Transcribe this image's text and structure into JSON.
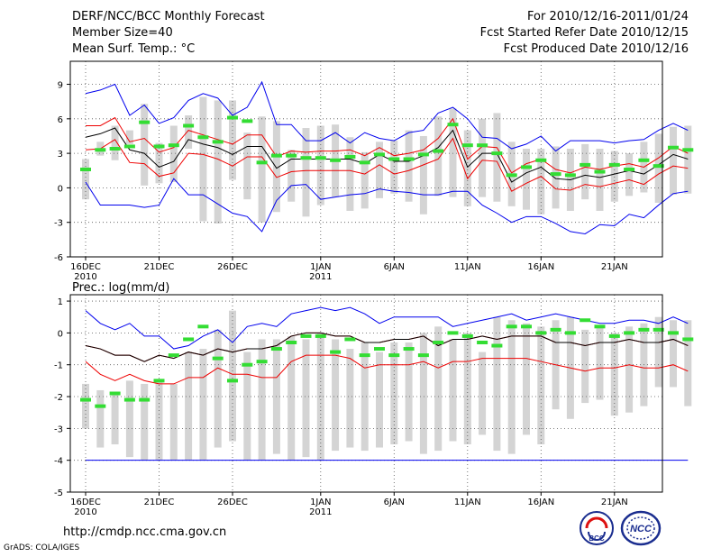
{
  "header": {
    "title": "DERF/NCC/BCC Monthly Forecast",
    "member_size": "Member Size=40",
    "variable": "Mean Surf. Temp.: °C",
    "valid_period": "For 2010/12/16-2011/01/24",
    "start_date": "Fcst Started Refer Date 2010/12/15",
    "produced_date": "Fcst Produced Date 2010/12/16"
  },
  "footer": {
    "url": "http://cmdp.ncc.cma.gov.cn",
    "credit": "GrADS: COLA/IGES",
    "logo_left_text": "BCC",
    "logo_right_text": "NCC"
  },
  "colors": {
    "envelope": "#0000ee",
    "quartile": "#ee0000",
    "mean": "#000000",
    "box": "#d4d4d4",
    "marker": "#33dd33",
    "grid": "#555555"
  },
  "x_axis": {
    "days": 40,
    "ticks": [
      {
        "day": 0,
        "label": "16DEC",
        "sub": "2010"
      },
      {
        "day": 5,
        "label": "21DEC",
        "sub": ""
      },
      {
        "day": 10,
        "label": "26DEC",
        "sub": ""
      },
      {
        "day": 16,
        "label": "1JAN",
        "sub": "2011"
      },
      {
        "day": 21,
        "label": "6JAN",
        "sub": ""
      },
      {
        "day": 26,
        "label": "11JAN",
        "sub": ""
      },
      {
        "day": 31,
        "label": "16JAN",
        "sub": ""
      },
      {
        "day": 36,
        "label": "21JAN",
        "sub": ""
      }
    ]
  },
  "chart_data": [
    {
      "type": "box",
      "title": "Mean Surf. Temp.: °C",
      "ylim": [
        -6,
        11
      ],
      "yticks": [
        -6,
        -3,
        0,
        3,
        6,
        9
      ],
      "blue_upper": [
        8.2,
        8.5,
        9.0,
        6.3,
        7.2,
        5.6,
        6.1,
        7.6,
        8.2,
        7.8,
        6.3,
        7.0,
        9.2,
        5.5,
        5.5,
        4.1,
        4.1,
        4.8,
        3.9,
        4.8,
        4.3,
        4.1,
        4.8,
        5.0,
        6.5,
        7.0,
        6.0,
        4.4,
        4.3,
        3.4,
        3.8,
        4.5,
        3.2,
        4.1,
        4.1,
        4.1,
        3.9,
        4.1,
        4.2,
        5.0,
        5.6,
        5.0
      ],
      "red_upper": [
        5.4,
        5.4,
        6.1,
        4.0,
        4.3,
        3.1,
        3.5,
        5.0,
        4.6,
        4.2,
        3.8,
        4.6,
        4.6,
        2.7,
        3.2,
        3.1,
        3.2,
        3.2,
        3.3,
        2.8,
        3.5,
        2.8,
        3.0,
        3.3,
        4.3,
        6.0,
        2.5,
        3.6,
        3.5,
        1.3,
        2.1,
        2.5,
        1.6,
        1.3,
        1.8,
        1.6,
        1.9,
        2.1,
        1.8,
        2.6,
        3.6,
        3.0
      ],
      "mean": [
        4.4,
        4.7,
        5.2,
        3.3,
        3.0,
        1.8,
        2.3,
        4.2,
        3.8,
        3.5,
        2.9,
        3.6,
        3.6,
        1.7,
        2.5,
        2.5,
        2.5,
        2.5,
        2.5,
        2.1,
        2.9,
        2.3,
        2.3,
        2.8,
        3.5,
        5.0,
        1.8,
        3.0,
        3.0,
        0.5,
        1.3,
        1.8,
        0.8,
        0.7,
        1.1,
        0.9,
        1.2,
        1.5,
        1.2,
        2.0,
        2.9,
        2.5
      ],
      "red_lower": [
        3.3,
        3.4,
        4.2,
        2.2,
        2.1,
        1.0,
        1.3,
        3.0,
        2.9,
        2.5,
        1.9,
        2.7,
        2.7,
        0.9,
        1.4,
        1.5,
        1.5,
        1.5,
        1.5,
        1.2,
        2.0,
        1.2,
        1.5,
        2.0,
        2.5,
        4.3,
        0.8,
        2.4,
        2.3,
        -0.3,
        0.4,
        1.0,
        -0.1,
        -0.2,
        0.3,
        0.1,
        0.4,
        0.7,
        0.3,
        1.2,
        1.9,
        1.7
      ],
      "blue_lower": [
        0.5,
        -1.5,
        -1.5,
        -1.5,
        -1.7,
        -1.5,
        0.8,
        -0.6,
        -0.6,
        -1.4,
        -2.2,
        -2.5,
        -3.8,
        -1.1,
        0.2,
        0.3,
        -1.0,
        -0.8,
        -0.6,
        -0.5,
        -0.1,
        -0.3,
        -0.4,
        -0.6,
        -0.6,
        -0.3,
        -0.3,
        -1.5,
        -2.2,
        -3.0,
        -2.5,
        -2.5,
        -3.1,
        -3.8,
        -4.0,
        -3.2,
        -3.3,
        -2.3,
        -2.6,
        -1.5,
        -0.5,
        -0.3
      ],
      "box_high": [
        2.5,
        4.0,
        5.4,
        5.0,
        7.3,
        3.9,
        5.4,
        6.3,
        7.9,
        7.6,
        7.6,
        4.8,
        6.2,
        5.8,
        3.3,
        5.2,
        5.4,
        5.5,
        4.4,
        3.1,
        4.0,
        4.1,
        5.0,
        4.5,
        6.2,
        6.9,
        5.0,
        6.0,
        6.5,
        4.0,
        3.4,
        3.4,
        3.6,
        3.4,
        3.8,
        3.4,
        3.2,
        3.0,
        4.0,
        4.7,
        5.3,
        5.4
      ],
      "box_low": [
        -1.0,
        2.8,
        2.4,
        3.8,
        0.2,
        0.4,
        0.5,
        3.4,
        -2.9,
        -3.1,
        0.7,
        -1.0,
        -3.0,
        -2.1,
        -1.2,
        -2.5,
        -1.5,
        -0.8,
        -2.0,
        -1.8,
        -0.9,
        -0.5,
        -1.2,
        -2.3,
        -0.7,
        -0.8,
        -1.6,
        -0.8,
        -1.2,
        -1.6,
        -1.9,
        -2.3,
        -1.8,
        -2.0,
        -1.0,
        -2.0,
        -1.2,
        -0.7,
        -0.4,
        -1.3,
        -0.6,
        -0.5
      ],
      "marker": [
        1.6,
        3.3,
        3.4,
        3.6,
        5.7,
        3.6,
        3.7,
        5.4,
        4.4,
        4.0,
        6.1,
        5.8,
        2.2,
        2.8,
        2.8,
        2.6,
        2.6,
        2.4,
        2.7,
        2.2,
        2.9,
        2.5,
        2.5,
        2.9,
        3.2,
        5.5,
        3.7,
        3.7,
        3.0,
        1.1,
        1.8,
        2.4,
        1.2,
        1.1,
        2.0,
        1.4,
        2.0,
        1.6,
        2.4,
        1.9,
        3.5,
        3.3
      ]
    },
    {
      "type": "box",
      "title": "Prec.: log(mm/d)",
      "ylim": [
        -5,
        1.2
      ],
      "yticks": [
        -5,
        -4,
        -3,
        -2,
        -1,
        0,
        1
      ],
      "blue_upper": [
        0.7,
        0.3,
        0.1,
        0.3,
        -0.1,
        -0.1,
        -0.5,
        -0.4,
        -0.1,
        0.1,
        -0.3,
        0.2,
        0.3,
        0.2,
        0.6,
        0.7,
        0.8,
        0.7,
        0.8,
        0.6,
        0.3,
        0.5,
        0.5,
        0.5,
        0.5,
        0.2,
        0.3,
        0.4,
        0.5,
        0.6,
        0.4,
        0.5,
        0.6,
        0.5,
        0.4,
        0.3,
        0.3,
        0.4,
        0.4,
        0.3,
        0.5,
        0.3
      ],
      "red_upper": [
        -0.4,
        -0.5,
        -0.7,
        -0.7,
        -0.9,
        -0.7,
        -0.8,
        -0.6,
        -0.7,
        -0.5,
        -0.6,
        -0.5,
        -0.5,
        -0.4,
        -0.1,
        0.0,
        0.0,
        -0.1,
        -0.1,
        -0.3,
        -0.3,
        -0.2,
        -0.2,
        -0.1,
        -0.4,
        -0.2,
        -0.2,
        -0.1,
        -0.2,
        -0.1,
        -0.1,
        -0.1,
        -0.3,
        -0.3,
        -0.4,
        -0.3,
        -0.3,
        -0.2,
        -0.3,
        -0.3,
        -0.2,
        -0.4
      ],
      "mean": [
        -0.4,
        -0.5,
        -0.7,
        -0.7,
        -0.9,
        -0.7,
        -0.8,
        -0.6,
        -0.7,
        -0.5,
        -0.6,
        -0.5,
        -0.5,
        -0.4,
        -0.1,
        0.0,
        0.0,
        -0.1,
        -0.1,
        -0.3,
        -0.3,
        -0.2,
        -0.2,
        -0.1,
        -0.4,
        -0.2,
        -0.2,
        -0.1,
        -0.2,
        -0.1,
        -0.1,
        -0.1,
        -0.3,
        -0.3,
        -0.4,
        -0.3,
        -0.3,
        -0.2,
        -0.3,
        -0.3,
        -0.2,
        -0.4
      ],
      "red_lower": [
        -0.9,
        -1.3,
        -1.5,
        -1.3,
        -1.5,
        -1.6,
        -1.6,
        -1.4,
        -1.4,
        -1.1,
        -1.3,
        -1.3,
        -1.4,
        -1.4,
        -0.9,
        -0.7,
        -0.7,
        -0.7,
        -0.8,
        -1.1,
        -1.0,
        -1.0,
        -1.0,
        -0.9,
        -1.1,
        -0.9,
        -0.9,
        -0.8,
        -0.8,
        -0.8,
        -0.8,
        -0.9,
        -1.0,
        -1.1,
        -1.2,
        -1.1,
        -1.1,
        -1.0,
        -1.1,
        -1.1,
        -1.0,
        -1.2
      ],
      "blue_lower": [
        -4.0,
        -4.0,
        -4.0,
        -4.0,
        -4.0,
        -4.0,
        -4.0,
        -4.0,
        -4.0,
        -4.0,
        -4.0,
        -4.0,
        -4.0,
        -4.0,
        -4.0,
        -4.0,
        -4.0,
        -4.0,
        -4.0,
        -4.0,
        -4.0,
        -4.0,
        -4.0,
        -4.0,
        -4.0,
        -4.0,
        -4.0,
        -4.0,
        -4.0,
        -4.0,
        -4.0,
        -4.0,
        -4.0,
        -4.0,
        -4.0,
        -4.0,
        -4.0,
        -4.0,
        -4.0,
        -4.0,
        -4.0,
        -4.0
      ],
      "box_high": [
        -1.6,
        -1.8,
        -1.9,
        -1.5,
        -1.6,
        -1.5,
        -1.6,
        -0.6,
        -0.5,
        0.1,
        0.7,
        -0.6,
        -0.2,
        -0.2,
        -0.1,
        -0.2,
        0.0,
        -0.2,
        -0.5,
        -0.3,
        -0.6,
        -0.3,
        -0.3,
        0.0,
        0.2,
        -0.2,
        0.0,
        -0.6,
        0.5,
        0.4,
        0.3,
        0.2,
        0.4,
        0.5,
        0.1,
        0.2,
        0.0,
        0.2,
        0.3,
        0.5,
        0.4,
        0.4
      ],
      "box_low": [
        -3.0,
        -3.6,
        -3.5,
        -3.9,
        -4.0,
        -4.0,
        -4.0,
        -4.0,
        -4.0,
        -3.6,
        -3.4,
        -4.0,
        -4.0,
        -3.8,
        -4.0,
        -3.9,
        -4.0,
        -3.7,
        -3.6,
        -3.7,
        -3.6,
        -3.5,
        -3.4,
        -3.8,
        -3.7,
        -3.4,
        -3.5,
        -3.2,
        -3.7,
        -3.8,
        -3.2,
        -3.5,
        -2.4,
        -2.7,
        -2.2,
        -2.1,
        -2.6,
        -2.5,
        -2.3,
        -1.7,
        -1.7,
        -2.3
      ],
      "marker": [
        -2.1,
        -2.3,
        -1.9,
        -2.1,
        -2.1,
        -1.5,
        -0.7,
        -0.2,
        0.2,
        -0.8,
        -1.5,
        -1.0,
        -0.9,
        -0.5,
        -0.3,
        -0.1,
        -0.1,
        -0.6,
        -0.2,
        -0.7,
        -0.5,
        -0.7,
        -0.5,
        -0.7,
        -0.3,
        0.0,
        -0.1,
        -0.3,
        -0.4,
        0.2,
        0.2,
        0.0,
        0.1,
        0.0,
        0.4,
        0.2,
        -0.1,
        0.0,
        0.1,
        0.1,
        0.0,
        -0.2
      ]
    }
  ]
}
